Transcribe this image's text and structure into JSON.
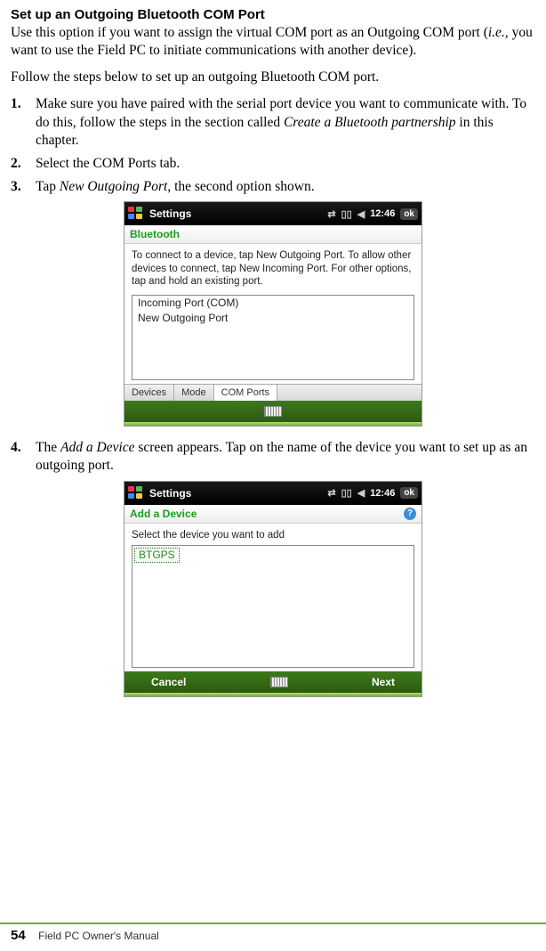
{
  "heading": "Set up an Outgoing Bluetooth COM Port",
  "intro_parts": {
    "a": "Use this option if you want to assign the virtual COM port as an Outgoing COM port (",
    "ie": "i.e.,",
    "b": " you want to use the Field PC to initiate communications with another device)."
  },
  "follow": "Follow the steps below to set up an outgoing Bluetooth COM port.",
  "steps": {
    "s1": {
      "num": "1.",
      "a": "Make sure you have paired with the serial port device you want to communicate with. To do this, follow the steps in the section called ",
      "ital": "Create a Bluetooth partnership",
      "b": " in this chapter."
    },
    "s2": {
      "num": "2.",
      "text": "Select the COM Ports tab."
    },
    "s3": {
      "num": "3.",
      "a": "Tap ",
      "ital": "New Outgoing Port,",
      "b": " the second option shown."
    },
    "s4": {
      "num": "4.",
      "a": "The ",
      "ital": "Add a Device",
      "b": " screen appears. Tap on the name of the device you want to set up as an outgoing port."
    }
  },
  "shot1": {
    "topbar_title": "Settings",
    "time": "12:46",
    "ok": "ok",
    "subtitle": "Bluetooth",
    "body": "To connect to a device, tap New Outgoing Port. To allow other devices to connect, tap New Incoming Port. For other options, tap and hold an existing port.",
    "list": {
      "r1": "Incoming Port  (COM)",
      "r2": "New Outgoing Port"
    },
    "tabs": {
      "t1": "Devices",
      "t2": "Mode",
      "t3": "COM Ports"
    }
  },
  "shot2": {
    "topbar_title": "Settings",
    "time": "12:46",
    "ok": "ok",
    "subtitle": "Add a Device",
    "body": "Select the device you want to add",
    "selected": "BTGPS",
    "btn_left": "Cancel",
    "btn_right": "Next"
  },
  "footer": {
    "page": "54",
    "title": "Field PC Owner's Manual"
  }
}
